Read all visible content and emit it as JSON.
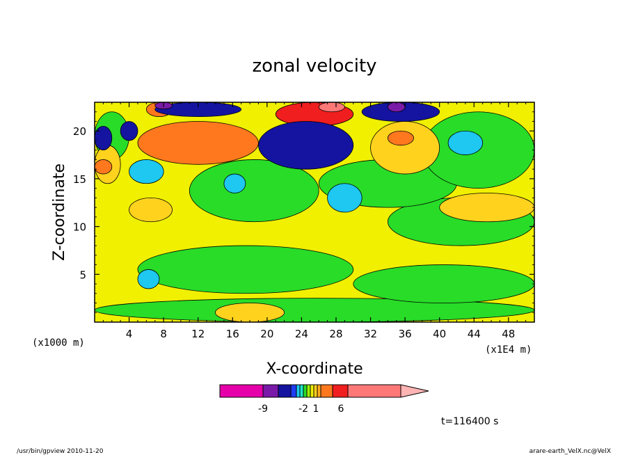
{
  "chart_data": {
    "type": "heatmap",
    "title": "zonal velocity",
    "xlabel": "X-coordinate",
    "ylabel": "Z-coordinate",
    "x_unit_left": "(x1000 m)",
    "x_unit_right": "(x1E4 m)",
    "xlim": [
      0,
      51
    ],
    "ylim": [
      0,
      23
    ],
    "x_ticks": [
      "4",
      "8",
      "12",
      "16",
      "20",
      "24",
      "28",
      "32",
      "36",
      "40",
      "44",
      "48"
    ],
    "y_ticks": [
      "5",
      "10",
      "15",
      "20"
    ],
    "x_tick_values": [
      4,
      8,
      12,
      16,
      20,
      24,
      28,
      32,
      36,
      40,
      44,
      48
    ],
    "y_tick_values": [
      5,
      10,
      15,
      20
    ],
    "colorbar_labels": [
      "-9",
      "-2",
      "1",
      "6"
    ],
    "colorbar_label_levels": [
      -9,
      -2,
      1,
      6
    ],
    "colorbar_colors": [
      "#e600aa",
      "#7a1aa8",
      "#1414a0",
      "#1e3cf0",
      "#1ec8f0",
      "#1ee6c8",
      "#28dc28",
      "#a0f000",
      "#f0f000",
      "#ffd21e",
      "#ffaa1e",
      "#ff781e",
      "#f01e1e",
      "#ff7878",
      "#ffb4b4"
    ],
    "field_colors": {
      "background": "#f0f000",
      "weak_positive": "#ffd21e",
      "moderate_positive": "#ff781e",
      "strong_positive": "#f01e1e",
      "weak_negative": "#28dc28",
      "moderate_negative": "#1ec8f0",
      "strong_negative": "#1414a0",
      "very_strong_negative": "#7a1aa8"
    },
    "annotations": {
      "time": "t=116400 s",
      "footer_left": "/usr/bin/gpview  2010-11-20",
      "footer_right": "arare-earth_VelX.nc@VelX"
    },
    "regions": [
      {
        "level": -1,
        "x": [
          0,
          51
        ],
        "y": [
          0,
          2.5
        ]
      },
      {
        "level": -1,
        "x": [
          5,
          30
        ],
        "y": [
          3,
          8
        ]
      },
      {
        "level": -1,
        "x": [
          30,
          51
        ],
        "y": [
          2,
          6
        ]
      },
      {
        "level": -1,
        "x": [
          34,
          51
        ],
        "y": [
          8,
          13
        ]
      },
      {
        "level": -1,
        "x": [
          11,
          26
        ],
        "y": [
          10.5,
          17
        ]
      },
      {
        "level": -1,
        "x": [
          26,
          42
        ],
        "y": [
          12,
          17
        ]
      },
      {
        "level": -1,
        "x": [
          38,
          51
        ],
        "y": [
          14,
          22
        ]
      },
      {
        "level": -1,
        "x": [
          0,
          4
        ],
        "y": [
          17,
          22
        ]
      },
      {
        "level": -3,
        "x": [
          5,
          7.5
        ],
        "y": [
          3.5,
          5.5
        ]
      },
      {
        "level": -3,
        "x": [
          27,
          31
        ],
        "y": [
          11.5,
          14.5
        ]
      },
      {
        "level": -3,
        "x": [
          15,
          17.5
        ],
        "y": [
          13.5,
          15.5
        ]
      },
      {
        "level": -3,
        "x": [
          4,
          8
        ],
        "y": [
          14.5,
          17
        ]
      },
      {
        "level": -3,
        "x": [
          41,
          45
        ],
        "y": [
          17.5,
          20
        ]
      },
      {
        "level": 2,
        "x": [
          4,
          9
        ],
        "y": [
          10.5,
          13
        ]
      },
      {
        "level": 2,
        "x": [
          40,
          51
        ],
        "y": [
          10.5,
          13.5
        ]
      },
      {
        "level": 2,
        "x": [
          32,
          40
        ],
        "y": [
          15.5,
          21
        ]
      },
      {
        "level": 2,
        "x": [
          0,
          3
        ],
        "y": [
          14.5,
          18.5
        ]
      },
      {
        "level": 2,
        "x": [
          14,
          22
        ],
        "y": [
          0,
          2
        ]
      },
      {
        "level": 4,
        "x": [
          5,
          19
        ],
        "y": [
          16.5,
          21
        ]
      },
      {
        "level": 4,
        "x": [
          34,
          37
        ],
        "y": [
          18.5,
          20
        ]
      },
      {
        "level": 4,
        "x": [
          0,
          2
        ],
        "y": [
          15.5,
          17
        ]
      },
      {
        "level": 4,
        "x": [
          6,
          9
        ],
        "y": [
          21.5,
          23
        ]
      },
      {
        "level": 6,
        "x": [
          21,
          30
        ],
        "y": [
          20.5,
          23
        ]
      },
      {
        "level": 8,
        "x": [
          26,
          29
        ],
        "y": [
          22,
          23
        ]
      },
      {
        "level": -7,
        "x": [
          19,
          30
        ],
        "y": [
          16,
          21
        ]
      },
      {
        "level": -7,
        "x": [
          7,
          17
        ],
        "y": [
          21.5,
          23
        ]
      },
      {
        "level": -7,
        "x": [
          31,
          40
        ],
        "y": [
          21,
          23
        ]
      },
      {
        "level": -7,
        "x": [
          0,
          2
        ],
        "y": [
          18,
          20.5
        ]
      },
      {
        "level": -7,
        "x": [
          3,
          5
        ],
        "y": [
          19,
          21
        ]
      },
      {
        "level": -9,
        "x": [
          34,
          36
        ],
        "y": [
          22,
          23
        ]
      },
      {
        "level": -9,
        "x": [
          7,
          9
        ],
        "y": [
          22.3,
          23
        ]
      }
    ]
  }
}
